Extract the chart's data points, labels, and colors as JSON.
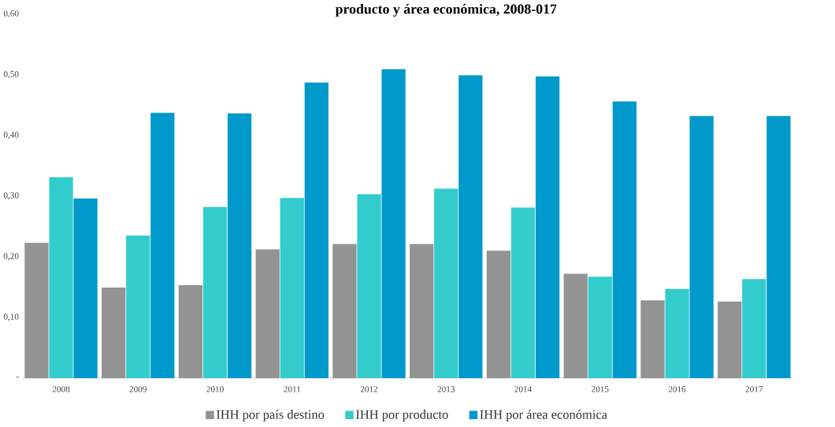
{
  "chart_data": {
    "type": "bar",
    "title": "producto y área económica, 2008-017",
    "categories": [
      "2008",
      "2009",
      "2010",
      "2011",
      "2012",
      "2013",
      "2014",
      "2015",
      "2016",
      "2017"
    ],
    "series": [
      {
        "name": "IHH por país destino",
        "color": "#939393",
        "values": [
          0.223,
          0.149,
          0.153,
          0.212,
          0.221,
          0.221,
          0.21,
          0.172,
          0.128,
          0.126
        ]
      },
      {
        "name": "IHH por producto",
        "color": "#33cccc",
        "values": [
          0.331,
          0.235,
          0.282,
          0.297,
          0.303,
          0.312,
          0.281,
          0.167,
          0.147,
          0.163
        ]
      },
      {
        "name": "IHH por área económica",
        "color": "#0099cc",
        "values": [
          0.296,
          0.437,
          0.436,
          0.487,
          0.509,
          0.499,
          0.497,
          0.456,
          0.432,
          0.432
        ]
      }
    ],
    "ylim": [
      0,
      0.6
    ],
    "yticks": [
      {
        "value": 0,
        "label": "-"
      },
      {
        "value": 0.1,
        "label": "0,10"
      },
      {
        "value": 0.2,
        "label": "0,20"
      },
      {
        "value": 0.3,
        "label": "0,30"
      },
      {
        "value": 0.4,
        "label": "0,40"
      },
      {
        "value": 0.5,
        "label": "0,50"
      },
      {
        "value": 0.6,
        "label": "0,60"
      }
    ],
    "legend": "bottom"
  }
}
